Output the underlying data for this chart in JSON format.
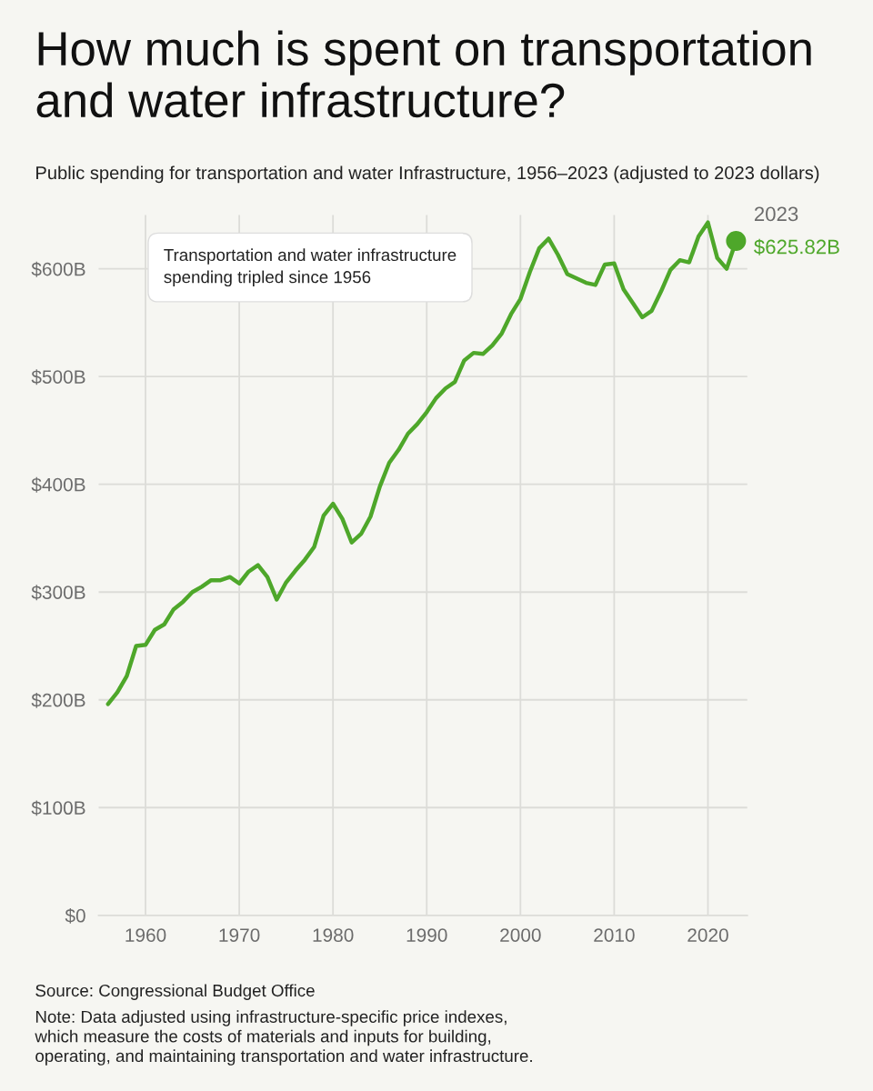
{
  "chart_data": {
    "type": "line",
    "title": "How much is spent on transportation and water infrastructure?",
    "subtitle": "Public spending for transportation and water Infrastructure, 1956–2023 (adjusted to 2023 dollars)",
    "x": [
      1956,
      1957,
      1958,
      1959,
      1960,
      1961,
      1962,
      1963,
      1964,
      1965,
      1966,
      1967,
      1968,
      1969,
      1970,
      1971,
      1972,
      1973,
      1974,
      1975,
      1976,
      1977,
      1978,
      1979,
      1980,
      1981,
      1982,
      1983,
      1984,
      1985,
      1986,
      1987,
      1988,
      1989,
      1990,
      1991,
      1992,
      1993,
      1994,
      1995,
      1996,
      1997,
      1998,
      1999,
      2000,
      2001,
      2002,
      2003,
      2004,
      2005,
      2006,
      2007,
      2008,
      2009,
      2010,
      2011,
      2012,
      2013,
      2014,
      2015,
      2016,
      2017,
      2018,
      2019,
      2020,
      2021,
      2022,
      2023
    ],
    "series": [
      {
        "color": "#4ea72a",
        "marker": "none",
        "values": [
          196,
          207,
          222,
          250,
          251,
          265,
          270,
          284,
          291,
          300,
          305,
          311,
          311,
          314,
          308,
          319,
          325,
          314,
          293,
          309,
          320,
          330,
          342,
          371,
          382,
          368,
          346,
          354,
          370,
          398,
          420,
          432,
          447,
          456,
          467,
          480,
          489,
          495,
          515,
          522,
          521,
          529,
          540,
          558,
          572,
          597,
          619,
          628,
          613,
          595,
          591,
          587,
          585,
          604,
          605,
          581,
          568,
          555,
          561,
          579,
          599,
          608,
          606,
          630,
          643,
          610,
          600,
          625.82
        ]
      },
      {
        "type": "scatter",
        "color": "#4ea72a",
        "marker": "circle",
        "x": [
          2023
        ],
        "values": [
          625.82
        ]
      }
    ],
    "xlim": [
      1955,
      2024.2
    ],
    "ylim": [
      0,
      650
    ],
    "xticks": [
      1960,
      1970,
      1980,
      1990,
      2000,
      2010,
      2020
    ],
    "yticks": [
      {
        "value": 0,
        "label": "$0"
      },
      {
        "value": 100,
        "label": "$100B"
      },
      {
        "value": 200,
        "label": "$200B"
      },
      {
        "value": 300,
        "label": "$300B"
      },
      {
        "value": 400,
        "label": "$400B"
      },
      {
        "value": 500,
        "label": "$500B"
      },
      {
        "value": 600,
        "label": "$600B"
      }
    ],
    "grid": true,
    "annotations": [
      "Transportation and water infrastructure\nspending tripled since 1956",
      {
        "text": "2023",
        "x": 2023,
        "y": 625.82
      },
      {
        "text": "$625.82B",
        "x": 2023,
        "y": 625.82
      },
      "Source: Congressional Budget Office",
      "Note: Data adjusted using infrastructure-specific price indexes,\nwhich measure the costs of materials and inputs for building,\noperating, and maintaining transportation and water infrastructure."
    ]
  }
}
